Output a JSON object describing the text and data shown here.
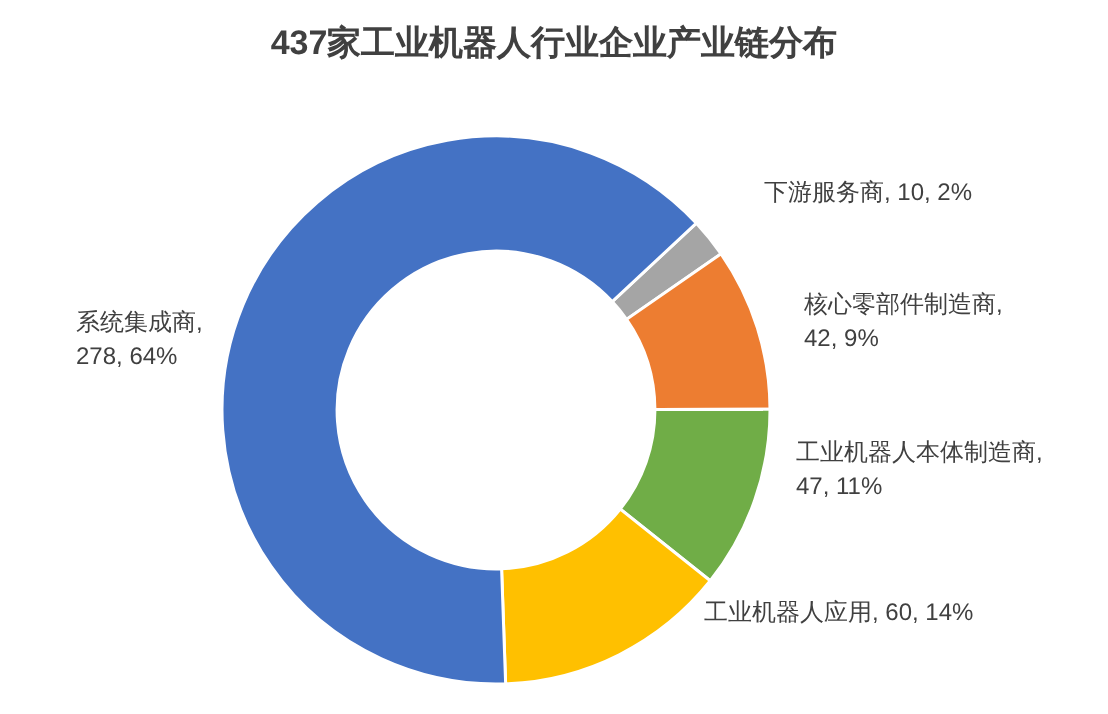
{
  "chart_data": {
    "type": "donut",
    "title": "437家工业机器人行业企业产业链分布",
    "categories": [
      "下游服务商",
      "核心零部件制造商",
      "工业机器人本体制造商",
      "工业机器人应用",
      "系统集成商"
    ],
    "values": [
      10,
      42,
      47,
      60,
      278
    ],
    "colors": [
      "#a5a5a5",
      "#ed7d31",
      "#70ad47",
      "#ffc000",
      "#4472c4"
    ],
    "value_labels": [
      ", 10, 2%",
      ",\n42, 9%",
      ",\n47, 11%",
      ", 60, 14%",
      ",\n278, 64%"
    ],
    "legend": false
  }
}
